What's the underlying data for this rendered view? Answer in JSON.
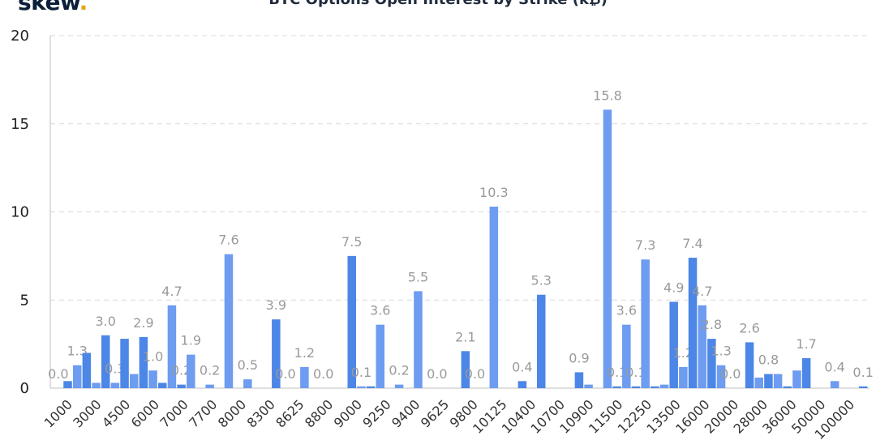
{
  "logo": {
    "text": "skew",
    "dot": "."
  },
  "title": "BTC Options Open Interest by Strike (k₿)",
  "colors": {
    "bar": "#4c86e6",
    "bar_light": "#6d9cf0",
    "grid": "#d9d9d9",
    "axis": "#bfbfbf",
    "label": "#9a9a9a"
  },
  "chart_data": {
    "type": "bar",
    "title": "BTC Options Open Interest by Strike (k₿)",
    "xlabel": "",
    "ylabel": "",
    "ylim": [
      0,
      20
    ],
    "yticks": [
      0,
      5,
      10,
      15,
      20
    ],
    "grid": true,
    "x_tick_labels": [
      "1000",
      "3000",
      "4500",
      "6000",
      "7000",
      "7700",
      "8000",
      "8300",
      "8625",
      "8800",
      "9000",
      "9250",
      "9400",
      "9625",
      "9800",
      "10125",
      "10400",
      "10700",
      "10900",
      "11500",
      "12250",
      "13500",
      "16000",
      "20000",
      "28000",
      "36000",
      "50000",
      "100000"
    ],
    "values": [
      0.0,
      0.4,
      1.3,
      2.0,
      0.3,
      3.0,
      0.3,
      2.8,
      0.8,
      2.9,
      1.0,
      0.3,
      4.7,
      0.2,
      1.9,
      0.0,
      0.2,
      0.0,
      7.6,
      0.0,
      0.5,
      0.0,
      0.0,
      3.9,
      0.0,
      0.0,
      1.2,
      0.0,
      0.0,
      0.0,
      0.0,
      7.5,
      0.1,
      0.1,
      3.6,
      0.0,
      0.2,
      0.0,
      5.5,
      0.0,
      0.0,
      0.0,
      0.0,
      2.1,
      0.0,
      0.0,
      10.3,
      0.0,
      0.0,
      0.4,
      0.0,
      5.3,
      0.0,
      0.0,
      0.0,
      0.9,
      0.2,
      0.0,
      15.8,
      0.1,
      3.6,
      0.1,
      7.3,
      0.1,
      0.2,
      4.9,
      1.2,
      7.4,
      4.7,
      2.8,
      1.3,
      0.0,
      0.0,
      2.6,
      0.6,
      0.8,
      0.8,
      0.1,
      1.0,
      1.7,
      0.0,
      0.0,
      0.4,
      0.0,
      0.0,
      0.1
    ],
    "data_labels": [
      "0.0",
      "",
      "1.3",
      "",
      "",
      "3.0",
      "0.3",
      "",
      "",
      "2.9",
      "1.0",
      "",
      "4.7",
      "0.2",
      "1.9",
      "",
      "0.2",
      "",
      "7.6",
      "",
      "0.5",
      "",
      "",
      "3.9",
      "0.0",
      "",
      "1.2",
      "",
      "0.0",
      "",
      "",
      "7.5",
      "0.1",
      "",
      "3.6",
      "",
      "0.2",
      "",
      "5.5",
      "",
      "0.0",
      "",
      "",
      "2.1",
      "0.0",
      "",
      "10.3",
      "",
      "",
      "0.4",
      "",
      "5.3",
      "",
      "",
      "",
      "0.9",
      "",
      "",
      "15.8",
      "0.1",
      "3.6",
      "0.1",
      "7.3",
      "",
      "",
      "4.9",
      "1.2",
      "7.4",
      "4.7",
      "2.8",
      "1.3",
      "0.0",
      "",
      "2.6",
      "",
      "0.8",
      "",
      "",
      "",
      "1.7",
      "",
      "",
      "0.4",
      "",
      "",
      "0.1"
    ]
  }
}
